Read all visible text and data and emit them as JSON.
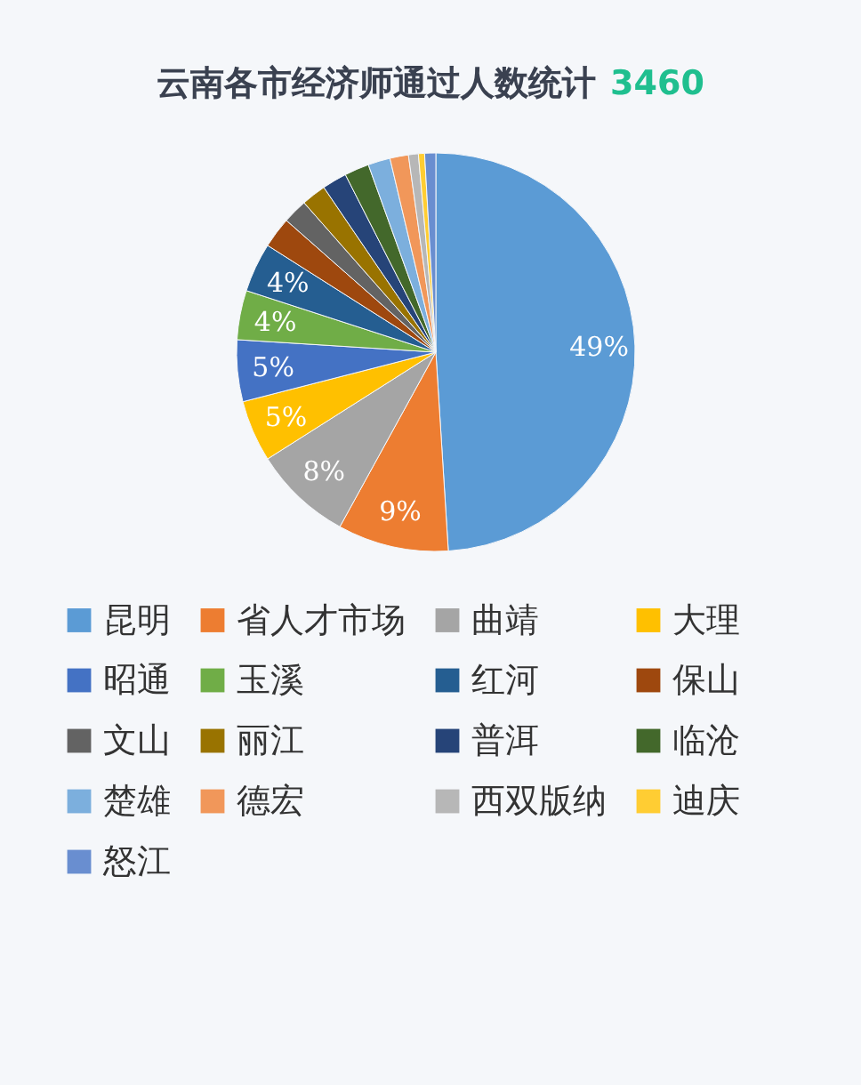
{
  "chart_data": {
    "type": "pie",
    "title": "云南各市经济师通过人数统计",
    "annotations": [
      "3460"
    ],
    "categories": [
      "昆明",
      "省人才市场",
      "曲靖",
      "大理",
      "昭通",
      "玉溪",
      "红河",
      "保山",
      "文山",
      "丽江",
      "普洱",
      "临沧",
      "楚雄",
      "德宏",
      "西双版纳",
      "迪庆",
      "怒江"
    ],
    "values": [
      49,
      9,
      8,
      5,
      5,
      4,
      4,
      2.5,
      2,
      2,
      2,
      2,
      1.8,
      1.5,
      0.8,
      0.5,
      0.9
    ],
    "value_labels": [
      "49%",
      "9%",
      "8%",
      "5%",
      "5%",
      "4%",
      "4%",
      null,
      null,
      null,
      null,
      null,
      null,
      null,
      null,
      null,
      null
    ],
    "colors": [
      "#5b9bd5",
      "#ed7d31",
      "#a5a5a5",
      "#ffc000",
      "#4472c4",
      "#70ad47",
      "#255e91",
      "#9e480e",
      "#636363",
      "#997300",
      "#264478",
      "#43682b",
      "#7cafdd",
      "#f1975a",
      "#b7b7b7",
      "#ffcd33",
      "#698ed0"
    ],
    "legend": "bottom"
  }
}
